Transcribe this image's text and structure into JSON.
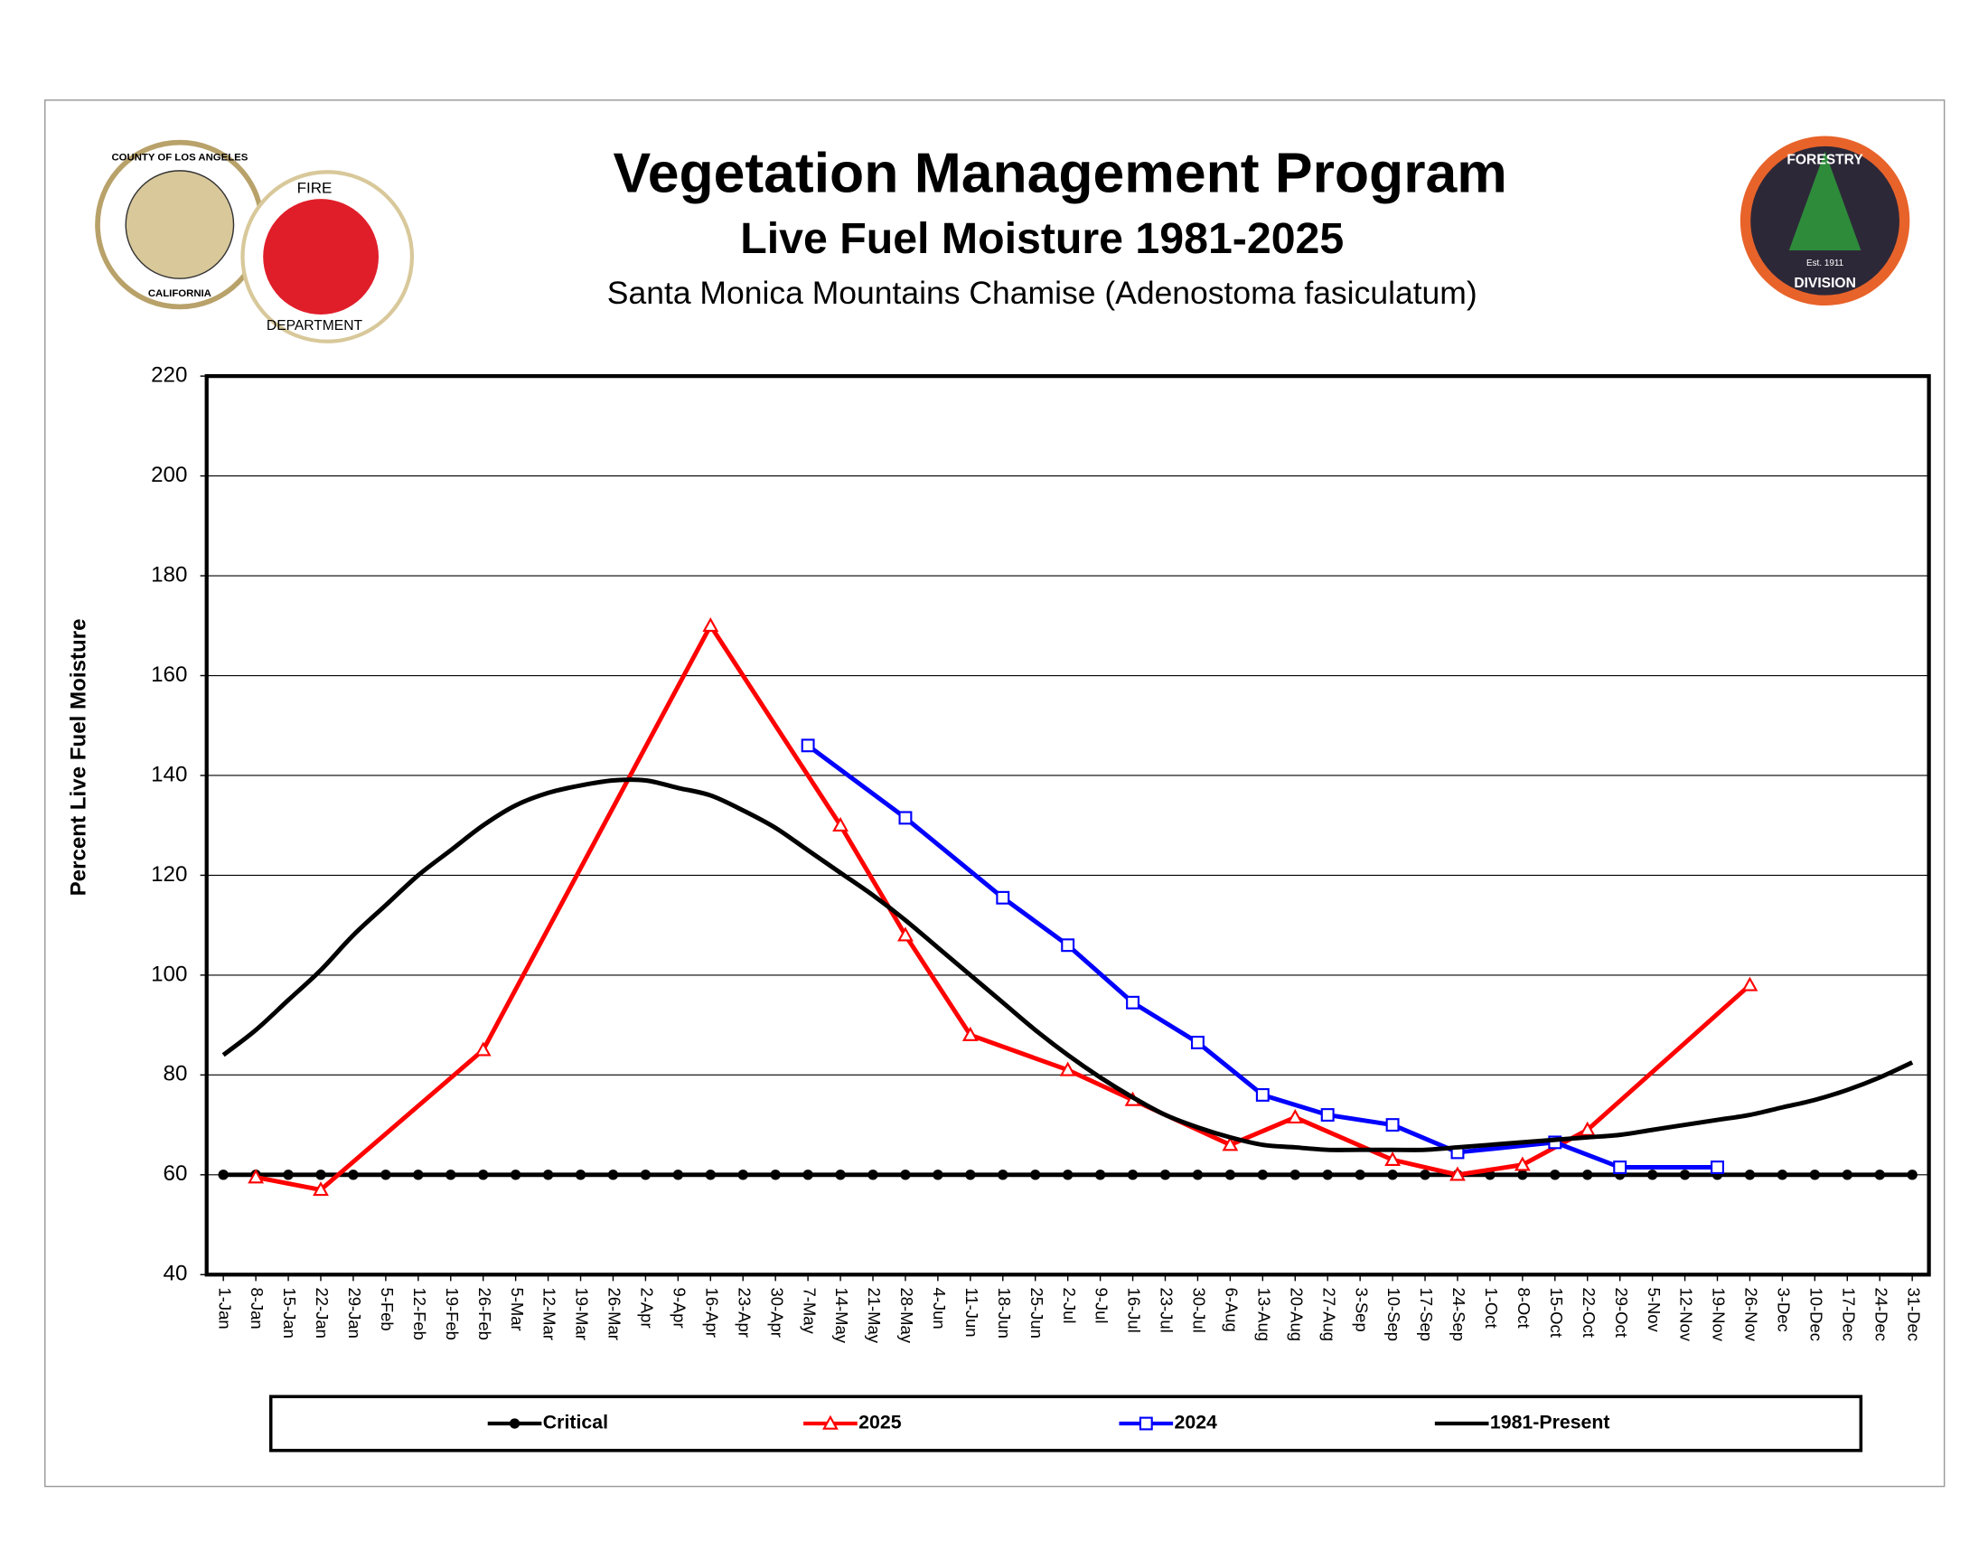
{
  "logos": {
    "left": [
      "COUNTY OF LOS ANGELES",
      "CALIFORNIA",
      "FIRE",
      "DEPARTMENT"
    ],
    "right": [
      "FORESTRY",
      "Est. 1911",
      "DIVISION"
    ]
  },
  "chart_data": {
    "type": "line",
    "title": "Vegetation Management Program",
    "subtitle": "Live Fuel Moisture 1981-2025",
    "caption": "Santa Monica Mountains Chamise (Adenostoma fasiculatum)",
    "y_label": "Percent Live Fuel Moisture",
    "categories": [
      "1-Jan",
      "8-Jan",
      "15-Jan",
      "22-Jan",
      "29-Jan",
      "5-Feb",
      "12-Feb",
      "19-Feb",
      "26-Feb",
      "5-Mar",
      "12-Mar",
      "19-Mar",
      "26-Mar",
      "2-Apr",
      "9-Apr",
      "16-Apr",
      "23-Apr",
      "30-Apr",
      "7-May",
      "14-May",
      "21-May",
      "28-May",
      "4-Jun",
      "11-Jun",
      "18-Jun",
      "25-Jun",
      "2-Jul",
      "9-Jul",
      "16-Jul",
      "23-Jul",
      "30-Jul",
      "6-Aug",
      "13-Aug",
      "20-Aug",
      "27-Aug",
      "3-Sep",
      "10-Sep",
      "17-Sep",
      "24-Sep",
      "1-Oct",
      "8-Oct",
      "15-Oct",
      "22-Oct",
      "29-Oct",
      "5-Nov",
      "12-Nov",
      "19-Nov",
      "26-Nov",
      "3-Dec",
      "10-Dec",
      "17-Dec",
      "24-Dec",
      "31-Dec"
    ],
    "ylim": [
      40,
      220
    ],
    "yticks": [
      40,
      60,
      80,
      100,
      120,
      140,
      160,
      180,
      200,
      220
    ],
    "grid": true,
    "series": [
      {
        "name": "Critical",
        "color": "#000000",
        "marker": "circle",
        "values": [
          60,
          60,
          60,
          60,
          60,
          60,
          60,
          60,
          60,
          60,
          60,
          60,
          60,
          60,
          60,
          60,
          60,
          60,
          60,
          60,
          60,
          60,
          60,
          60,
          60,
          60,
          60,
          60,
          60,
          60,
          60,
          60,
          60,
          60,
          60,
          60,
          60,
          60,
          60,
          60,
          60,
          60,
          60,
          60,
          60,
          60,
          60,
          60,
          60,
          60,
          60,
          60,
          60
        ]
      },
      {
        "name": "2025",
        "color": "#ff0000",
        "marker": "triangle",
        "x": [
          "8-Jan",
          "22-Jan",
          "26-Feb",
          "16-Apr",
          "14-May",
          "28-May",
          "11-Jun",
          "2-Jul",
          "16-Jul",
          "6-Aug",
          "20-Aug",
          "10-Sep",
          "24-Sep",
          "8-Oct",
          "22-Oct",
          "26-Nov"
        ],
        "values": [
          59.5,
          57,
          85,
          170,
          130,
          108,
          88,
          81,
          75,
          66,
          71.5,
          63,
          60,
          62,
          69,
          98
        ]
      },
      {
        "name": "2024",
        "color": "#0000ff",
        "marker": "square",
        "x": [
          "7-May",
          "28-May",
          "18-Jun",
          "2-Jul",
          "16-Jul",
          "30-Jul",
          "13-Aug",
          "27-Aug",
          "10-Sep",
          "24-Sep",
          "15-Oct",
          "29-Oct",
          "19-Nov"
        ],
        "values": [
          146,
          131.5,
          115.5,
          106,
          94.5,
          86.5,
          76,
          72,
          70,
          64.5,
          66.5,
          61.5,
          61.5
        ]
      },
      {
        "name": "1981-Present",
        "color": "#000000",
        "smooth": true,
        "values": [
          84,
          89,
          95,
          101,
          108,
          114,
          120,
          125,
          130,
          134,
          136.5,
          138,
          139,
          139,
          137.5,
          136,
          133,
          129.5,
          125,
          120.5,
          116,
          111,
          105.5,
          100,
          94.5,
          89,
          84,
          79.5,
          75.5,
          72,
          69.5,
          67.5,
          66,
          65.5,
          65,
          65,
          65,
          65,
          65.5,
          66,
          66.5,
          67,
          67.5,
          68,
          69,
          70,
          71,
          72,
          73.5,
          75,
          77,
          79.5,
          82.5
        ]
      }
    ]
  }
}
